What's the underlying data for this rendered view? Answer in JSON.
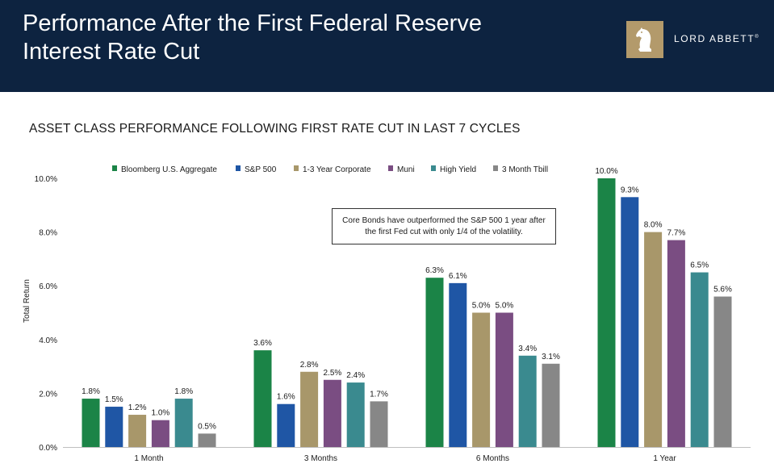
{
  "header": {
    "title_line1": "Performance After the First Federal Reserve",
    "title_line2": "Interest Rate Cut",
    "logo_text": "LORD ABBETT",
    "logo_reg": "®"
  },
  "chart_data": {
    "type": "bar",
    "title": "ASSET CLASS PERFORMANCE FOLLOWING FIRST RATE CUT IN LAST 7 CYCLES",
    "xlabel": "",
    "ylabel": "Total Return",
    "ylim": [
      0,
      10
    ],
    "yticks": [
      "0.0%",
      "2.0%",
      "4.0%",
      "6.0%",
      "8.0%",
      "10.0%"
    ],
    "ytick_values": [
      0,
      2,
      4,
      6,
      8,
      10
    ],
    "grid": false,
    "legend_position": "top",
    "categories": [
      "1 Month",
      "3 Months",
      "6 Months",
      "1 Year"
    ],
    "series": [
      {
        "name": "Bloomberg U.S. Aggregate",
        "color": "#1b8447",
        "values": [
          1.8,
          3.6,
          6.3,
          10.0
        ],
        "labels": [
          "1.8%",
          "3.6%",
          "6.3%",
          "10.0%"
        ]
      },
      {
        "name": "S&P 500",
        "color": "#1f56a5",
        "values": [
          1.5,
          1.6,
          6.1,
          9.3
        ],
        "labels": [
          "1.5%",
          "1.6%",
          "6.1%",
          "9.3%"
        ]
      },
      {
        "name": "1-3 Year Corporate",
        "color": "#a8976a",
        "values": [
          1.2,
          2.8,
          5.0,
          8.0
        ],
        "labels": [
          "1.2%",
          "2.8%",
          "5.0%",
          "8.0%"
        ]
      },
      {
        "name": "Muni",
        "color": "#7a4d82",
        "values": [
          1.0,
          2.5,
          5.0,
          7.7
        ],
        "labels": [
          "1.0%",
          "2.5%",
          "5.0%",
          "7.7%"
        ]
      },
      {
        "name": "High Yield",
        "color": "#3a8a8f",
        "values": [
          1.8,
          2.4,
          3.4,
          6.5
        ],
        "labels": [
          "1.8%",
          "2.4%",
          "3.4%",
          "6.5%"
        ]
      },
      {
        "name": "3 Month Tbill",
        "color": "#878787",
        "values": [
          0.5,
          1.7,
          3.1,
          5.6
        ],
        "labels": [
          "0.5%",
          "1.7%",
          "3.1%",
          "5.6%"
        ]
      }
    ],
    "annotation": "Core Bonds have outperformed the S&P 500 1 year after the first Fed cut with only 1/4 of the volatility."
  }
}
